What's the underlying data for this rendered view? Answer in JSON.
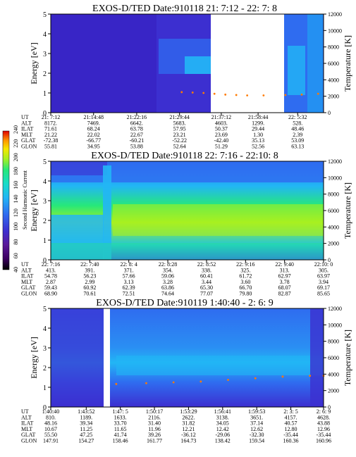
{
  "chart_data": [
    {
      "type": "heatmap",
      "title": "EXOS-D/TED   Date:910118  21: 7:12 - 22: 7: 8",
      "ylabel": "Energy [eV]",
      "y2label": "Temperature [K]",
      "ylim": [
        0,
        5
      ],
      "y2lim": [
        0,
        12000
      ],
      "yticks": [
        "0",
        "1",
        "2",
        "3",
        "4",
        "5"
      ],
      "y2ticks": [
        "0",
        "2000",
        "4000",
        "6000",
        "8000",
        "10000",
        "12000"
      ],
      "gap": [
        0.56,
        0.77
      ],
      "table": {
        "rows": [
          "UT",
          "ALT",
          "ILAT",
          "MLT",
          "GLAT",
          "GLON"
        ],
        "cols": [
          [
            "21: 7:12",
            "8172.",
            "71.61",
            "21.22",
            "-72.38",
            "55.81"
          ],
          [
            "21:14:48",
            "7469.",
            "68.24",
            "22.02",
            "-66.77",
            "34.95"
          ],
          [
            "21:22:16",
            "6642.",
            "63.78",
            "22.67",
            "-60.21",
            "53.88"
          ],
          [
            "21:29:44",
            "5683.",
            "57.95",
            "23.21",
            "-52.22",
            "52.64"
          ],
          [
            "21:37:12",
            "4603.",
            "50.37",
            "23.69",
            "-42.40",
            "51.29"
          ],
          [
            "21:58:44",
            "1299.",
            "29.44",
            "1.30",
            "35.13",
            "52.56"
          ],
          [
            "22: 5:32",
            "528.",
            "48.46",
            "2.39",
            "53.09",
            "63.13"
          ]
        ],
        "pos": [
          0.0,
          0.157,
          0.315,
          0.472,
          0.625,
          0.76,
          0.905
        ]
      },
      "temperature_points": [
        [
          0.48,
          2500
        ],
        [
          0.52,
          2450
        ],
        [
          0.56,
          2400
        ],
        [
          0.6,
          2300
        ],
        [
          0.64,
          2200
        ],
        [
          0.68,
          2150
        ],
        [
          0.72,
          2100
        ],
        [
          0.78,
          2100
        ],
        [
          0.86,
          2150
        ],
        [
          0.92,
          2200
        ],
        [
          0.98,
          2300
        ]
      ]
    },
    {
      "type": "heatmap",
      "title": "EXOS-D/TED   Date:910118  22: 7:16 - 22:10: 8",
      "ylabel": "Energy [eV]",
      "y2label": "Temperature [K]",
      "ylim": [
        0,
        5
      ],
      "y2lim": [
        0,
        12000
      ],
      "yticks": [
        "0",
        "1",
        "2",
        "3",
        "4",
        "5"
      ],
      "y2ticks": [
        "0",
        "2000",
        "4000",
        "6000",
        "8000",
        "10000",
        "12000"
      ],
      "table": {
        "rows": [
          "UT",
          "ALT",
          "ILAT",
          "MLT",
          "GLAT",
          "GLON"
        ],
        "cols": [
          [
            "22: 7:16",
            "413.",
            "54.78",
            "2.87",
            "59.43",
            "68.90"
          ],
          [
            "22: 7:40",
            "391.",
            "56.23",
            "2.99",
            "60.92",
            "70.61"
          ],
          [
            "22: 8: 4",
            "371.",
            "57.66",
            "3.13",
            "62.39",
            "72.51"
          ],
          [
            "22: 8:28",
            "354.",
            "59.06",
            "3.28",
            "63.86",
            "74.64"
          ],
          [
            "22: 8:52",
            "338.",
            "60.41",
            "3.44",
            "65.30",
            "77.07"
          ],
          [
            "22: 9:16",
            "325.",
            "61.72",
            "3.60",
            "66.70",
            "79.80"
          ],
          [
            "22: 9:40",
            "313.",
            "62.97",
            "3.78",
            "68.07",
            "82.87"
          ],
          [
            "22:10: 0",
            "305.",
            "63.97",
            "3.94",
            "69.17",
            "85.65"
          ]
        ],
        "pos": [
          0.0,
          0.143,
          0.286,
          0.429,
          0.571,
          0.714,
          0.857,
          1.0
        ]
      }
    },
    {
      "type": "heatmap",
      "title": "EXOS-D/TED   Date:910119  1:40:40 - 2: 6: 9",
      "ylabel": "Energy [eV]",
      "y2label": "Temperature [K]",
      "ylim": [
        0,
        5
      ],
      "y2lim": [
        0,
        12000
      ],
      "yticks": [
        "0",
        "1",
        "2",
        "3",
        "4",
        "5"
      ],
      "y2ticks": [
        "0",
        "2000",
        "4000",
        "6000",
        "8000",
        "10000",
        "12000"
      ],
      "gap": [
        0.2,
        0.235
      ],
      "table": {
        "rows": [
          "UT",
          "ALT",
          "ILAT",
          "MLT",
          "GLAT",
          "GLON"
        ],
        "cols": [
          [
            "1:40:40",
            "810.",
            "48.16",
            "10.67",
            "55.50",
            "147.91"
          ],
          [
            "1:43:52",
            "1189.",
            "39.34",
            "11.25",
            "47.25",
            "154.27"
          ],
          [
            "1:47: 5",
            "1633.",
            "33.70",
            "11.65",
            "41.74",
            "158.46"
          ],
          [
            "1:50:17",
            "2116.",
            "31.40",
            "11.96",
            "39.26",
            "161.77"
          ],
          [
            "1:53:29",
            "2622.",
            "31.82",
            "12.21",
            "-36.12",
            "164.73"
          ],
          [
            "1:56:41",
            "3138.",
            "34.05",
            "12.42",
            "-29.06",
            "138.42"
          ],
          [
            "1:59:53",
            "3651.",
            "37.14",
            "12.62",
            "-32.30",
            "159.54"
          ],
          [
            "2: 3: 5",
            "4157.",
            "40.57",
            "12.80",
            "-35.44",
            "160.36"
          ],
          [
            "2: 6: 9",
            "4628.",
            "43.88",
            "12.96",
            "-35.44",
            "160.96"
          ]
        ],
        "pos": [
          0.0,
          0.13,
          0.255,
          0.38,
          0.505,
          0.63,
          0.755,
          0.88,
          1.0
        ]
      },
      "temperature_points": [
        [
          0.24,
          2800
        ],
        [
          0.35,
          2900
        ],
        [
          0.45,
          3000
        ],
        [
          0.55,
          3100
        ],
        [
          0.65,
          3300
        ],
        [
          0.75,
          3500
        ],
        [
          0.85,
          3700
        ],
        [
          0.95,
          3800
        ],
        [
          1.0,
          3800
        ]
      ]
    }
  ],
  "colorbar": {
    "label": "Second Harmonic Current",
    "ticks": [
      "40",
      "60",
      "80",
      "100",
      "120",
      "140",
      "160",
      "180",
      "200",
      "220",
      "240"
    ],
    "colors": [
      "#000000",
      "#3b0060",
      "#5a1a9a",
      "#3c2fd0",
      "#2f6cf0",
      "#22b6f5",
      "#18dcc8",
      "#26e87a",
      "#a8f020",
      "#f5e800",
      "#ff9a00",
      "#ff3000",
      "#e00000"
    ]
  }
}
